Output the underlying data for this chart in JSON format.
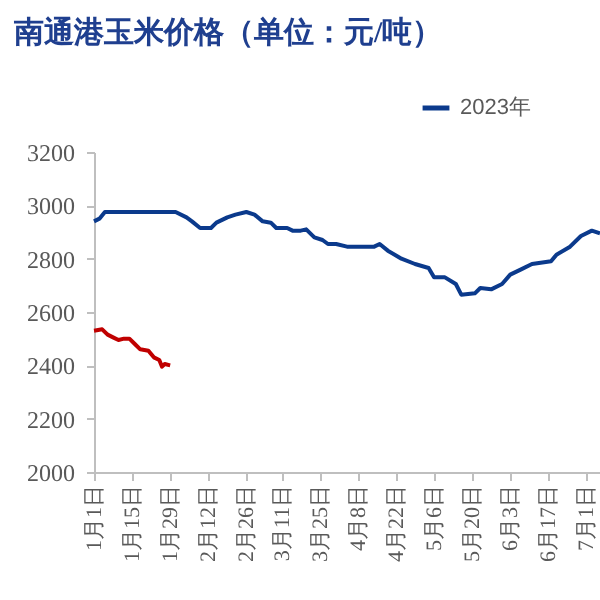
{
  "chart_data": {
    "type": "line",
    "title": "南通港玉米价格（单位：元/吨）",
    "legend": "top right",
    "grid": false,
    "ylim": [
      2000,
      3200
    ],
    "yticks": [
      2000,
      2200,
      2400,
      2600,
      2800,
      3000,
      3200
    ],
    "xlim": [
      "--01-01",
      "--07-06"
    ],
    "xticks": [
      {
        "value": "--01-01",
        "label": "1月1日"
      },
      {
        "value": "--01-15",
        "label": "1月15日"
      },
      {
        "value": "--01-29",
        "label": "1月29日"
      },
      {
        "value": "--02-12",
        "label": "2月12日"
      },
      {
        "value": "--02-26",
        "label": "2月26日"
      },
      {
        "value": "--03-11",
        "label": "3月11日"
      },
      {
        "value": "--03-25",
        "label": "3月25日"
      },
      {
        "value": "--04-08",
        "label": "4月8日"
      },
      {
        "value": "--04-22",
        "label": "4月22日"
      },
      {
        "value": "--05-06",
        "label": "5月6日"
      },
      {
        "value": "--05-20",
        "label": "5月20日"
      },
      {
        "value": "--06-03",
        "label": "6月3日"
      },
      {
        "value": "--06-17",
        "label": "6月17日"
      },
      {
        "value": "--07-01",
        "label": "7月1日"
      }
    ],
    "series": [
      {
        "name": "2023年",
        "color": "#0b3a8c",
        "x": [
          "--01-01",
          "--01-03",
          "--01-05",
          "--01-31",
          "--02-04",
          "--02-06",
          "--02-09",
          "--02-13",
          "--02-15",
          "--02-19",
          "--02-22",
          "--02-26",
          "--03-01",
          "--03-04",
          "--03-07",
          "--03-09",
          "--03-13",
          "--03-15",
          "--03-18",
          "--03-20",
          "--03-23",
          "--03-26",
          "--03-28",
          "--03-31",
          "--04-04",
          "--04-14",
          "--04-16",
          "--04-19",
          "--04-24",
          "--04-29",
          "--05-04",
          "--05-06",
          "--05-10",
          "--05-14",
          "--05-16",
          "--05-21",
          "--05-23",
          "--05-27",
          "--05-31",
          "--06-03",
          "--06-07",
          "--06-11",
          "--06-18",
          "--06-20",
          "--06-25",
          "--06-29",
          "--07-03",
          "--07-06"
        ],
        "values": [
          2940,
          2950,
          2975,
          2975,
          2955,
          2940,
          2915,
          2915,
          2935,
          2955,
          2965,
          2975,
          2965,
          2940,
          2935,
          2915,
          2915,
          2905,
          2905,
          2910,
          2880,
          2870,
          2855,
          2855,
          2845,
          2845,
          2855,
          2830,
          2800,
          2780,
          2765,
          2730,
          2730,
          2705,
          2665,
          2670,
          2690,
          2685,
          2705,
          2740,
          2760,
          2780,
          2790,
          2815,
          2845,
          2885,
          2905,
          2895
        ]
      },
      {
        "color": "#c00000",
        "x": [
          "--01-01",
          "--01-04",
          "--01-06",
          "--01-08",
          "--01-10",
          "--01-12",
          "--01-14",
          "--01-16",
          "--01-18",
          "--01-21",
          "--01-23",
          "--01-25",
          "--01-26",
          "--01-27",
          "--01-29"
        ],
        "values": [
          2530,
          2535,
          2515,
          2505,
          2495,
          2500,
          2500,
          2480,
          2460,
          2455,
          2430,
          2420,
          2395,
          2405,
          2400
        ]
      }
    ]
  }
}
